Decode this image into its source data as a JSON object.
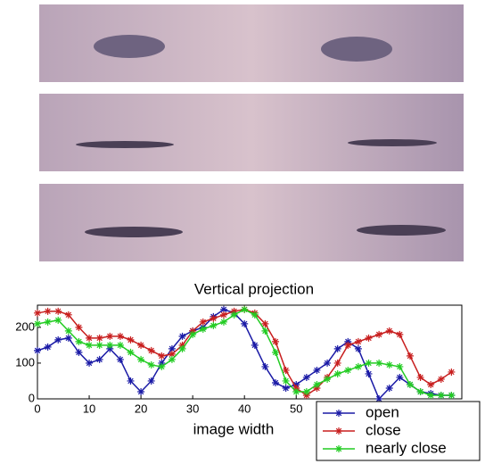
{
  "chart_data": {
    "type": "line",
    "title": "Vertical projection",
    "x_label": "image width",
    "x": [
      0,
      2,
      4,
      6,
      8,
      10,
      12,
      14,
      16,
      18,
      20,
      22,
      24,
      26,
      28,
      30,
      32,
      34,
      36,
      38,
      40,
      42,
      44,
      46,
      48,
      50,
      52,
      54,
      56,
      58,
      60,
      62,
      64,
      66,
      68,
      70,
      72,
      74,
      76,
      78,
      80
    ],
    "series": [
      {
        "name": "open",
        "color": "#1a1aa6",
        "values": [
          135,
          145,
          165,
          170,
          130,
          100,
          110,
          140,
          110,
          50,
          20,
          50,
          100,
          140,
          175,
          190,
          200,
          230,
          250,
          240,
          210,
          150,
          90,
          45,
          30,
          40,
          60,
          80,
          100,
          140,
          160,
          140,
          70,
          0,
          30,
          60,
          40,
          20,
          15,
          10,
          10
        ]
      },
      {
        "name": "close",
        "color": "#c81e1e",
        "values": [
          240,
          245,
          245,
          235,
          200,
          170,
          170,
          175,
          175,
          165,
          150,
          135,
          120,
          125,
          150,
          190,
          215,
          225,
          235,
          245,
          250,
          240,
          210,
          160,
          80,
          30,
          10,
          30,
          60,
          100,
          150,
          160,
          170,
          180,
          190,
          180,
          120,
          60,
          40,
          55,
          75
        ]
      },
      {
        "name": "nearly close",
        "color": "#22cc22",
        "values": [
          210,
          215,
          220,
          190,
          160,
          150,
          150,
          150,
          150,
          130,
          110,
          95,
          90,
          110,
          140,
          180,
          195,
          205,
          215,
          235,
          250,
          235,
          190,
          130,
          50,
          20,
          20,
          40,
          55,
          70,
          80,
          90,
          100,
          100,
          95,
          90,
          40,
          20,
          10,
          10,
          10
        ]
      }
    ],
    "xlim": [
      0,
      82
    ],
    "xticks": [
      0,
      10,
      20,
      30,
      40,
      50
    ],
    "ylim": [
      0,
      262
    ],
    "yticks": [
      0,
      100,
      200
    ]
  }
}
